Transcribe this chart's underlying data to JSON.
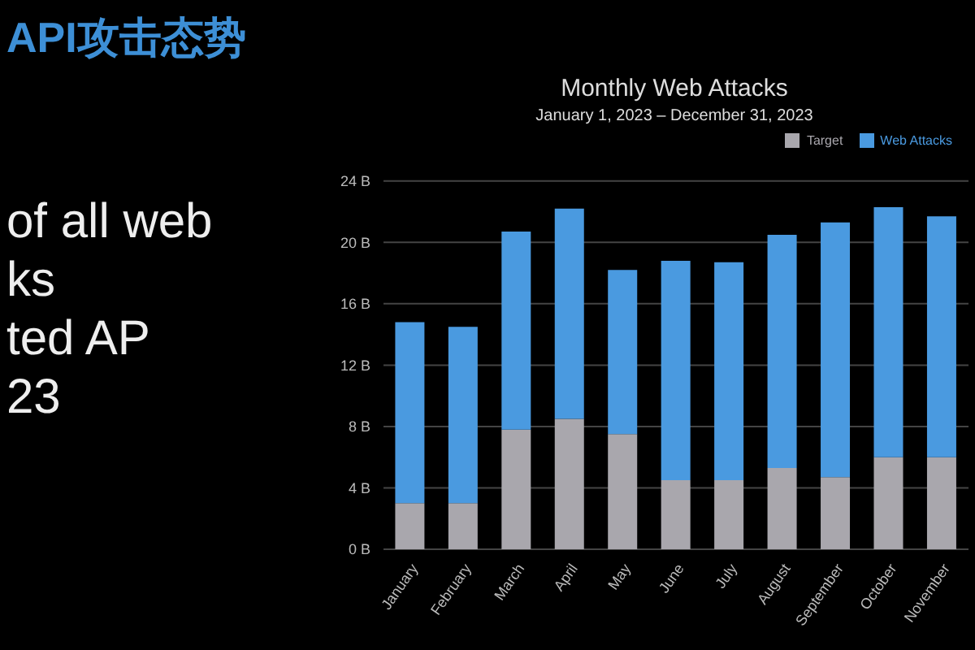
{
  "chart_data": {
    "type": "bar",
    "title": "Monthly Web Attacks",
    "subtitle": "January 1, 2023 – December 31, 2023",
    "categories": [
      "January",
      "February",
      "March",
      "April",
      "May",
      "June",
      "July",
      "August",
      "September",
      "October",
      "November"
    ],
    "series": [
      {
        "name": "Target",
        "color": "#a9a7ad",
        "values": [
          3.0,
          3.0,
          7.8,
          8.5,
          7.5,
          4.5,
          4.5,
          5.3,
          4.7,
          6.0,
          6.0
        ]
      },
      {
        "name": "Web Attacks",
        "color": "#4a9ae0",
        "values": [
          11.8,
          11.5,
          12.9,
          13.7,
          10.7,
          14.3,
          14.2,
          15.2,
          16.6,
          16.3,
          15.7
        ]
      }
    ],
    "stacked": true,
    "ylim": [
      0,
      24
    ],
    "yticks": [
      {
        "value": 0,
        "label": "0 B"
      },
      {
        "value": 4,
        "label": "4 B"
      },
      {
        "value": 8,
        "label": "8 B"
      },
      {
        "value": 12,
        "label": "12 B"
      },
      {
        "value": 16,
        "label": "16 B"
      },
      {
        "value": 20,
        "label": "20 B"
      },
      {
        "value": 24,
        "label": "24 B"
      }
    ],
    "grid": "y",
    "legend": "top right",
    "annotations": [
      "API攻击态势",
      "of all web",
      "ks",
      "ted AP",
      "23"
    ]
  }
}
